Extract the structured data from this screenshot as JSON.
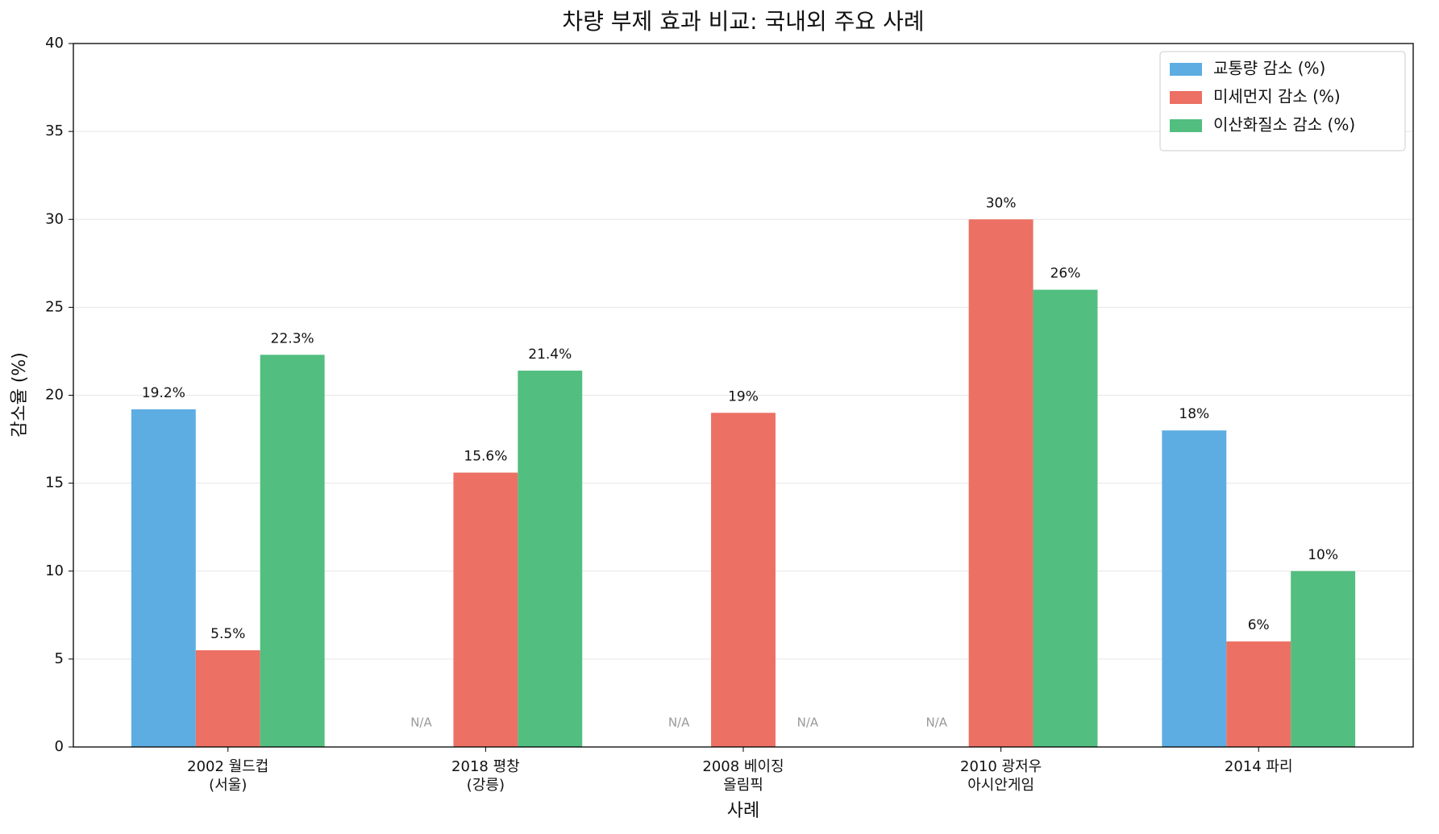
{
  "chart_data": {
    "type": "bar",
    "title": "차량 부제 효과 비교: 국내외 주요 사례",
    "xlabel": "사례",
    "ylabel": "감소율 (%)",
    "categories": [
      "2002 월드컵\n(서울)",
      "2018 평창\n(강릉)",
      "2008 베이징\n올림픽",
      "2010 광저우\n아시안게임",
      "2014 파리"
    ],
    "series": [
      {
        "name": "교통량 감소 (%)",
        "color": "#5dade2",
        "values": [
          19.2,
          null,
          null,
          null,
          18
        ],
        "value_labels": [
          "19.2%",
          "N/A",
          "N/A",
          "N/A",
          "18%"
        ]
      },
      {
        "name": "미세먼지 감소 (%)",
        "color": "#ec7063",
        "values": [
          5.5,
          15.6,
          19,
          30,
          6
        ],
        "value_labels": [
          "5.5%",
          "15.6%",
          "19%",
          "30%",
          "6%"
        ]
      },
      {
        "name": "이산화질소 감소 (%)",
        "color": "#52be80",
        "values": [
          22.3,
          21.4,
          null,
          26,
          10
        ],
        "value_labels": [
          "22.3%",
          "21.4%",
          "N/A",
          "26%",
          "10%"
        ]
      }
    ],
    "ylim": [
      0,
      40
    ],
    "yticks": [
      0,
      5,
      10,
      15,
      20,
      25,
      30,
      35,
      40
    ],
    "grid": true,
    "legend": "upper right"
  }
}
